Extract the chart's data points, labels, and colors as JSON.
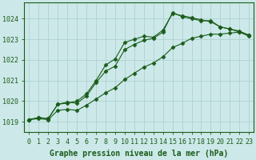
{
  "xlabel": "Graphe pression niveau de la mer (hPa)",
  "bg_color": "#cce8e8",
  "line_color": "#1a5c1a",
  "grid_color": "#aacece",
  "ylim": [
    1018.5,
    1024.8
  ],
  "xlim": [
    -0.5,
    23.5
  ],
  "yticks": [
    1019,
    1020,
    1021,
    1022,
    1023,
    1024
  ],
  "xticks": [
    0,
    1,
    2,
    3,
    4,
    5,
    6,
    7,
    8,
    9,
    10,
    11,
    12,
    13,
    14,
    15,
    16,
    17,
    18,
    19,
    20,
    21,
    22,
    23
  ],
  "xtick_labels": [
    "0",
    "1",
    "2",
    "3",
    "4",
    "5",
    "6",
    "7",
    "8",
    "9",
    "10",
    "11",
    "12",
    "13",
    "14",
    "15",
    "16",
    "17",
    "18",
    "19",
    "20",
    "21",
    "22",
    "23"
  ],
  "line1_x": [
    0,
    1,
    2,
    3,
    4,
    5,
    6,
    7,
    8,
    9,
    10,
    11,
    12,
    13,
    14,
    15,
    16,
    17,
    18,
    19,
    20,
    21,
    22,
    23
  ],
  "line1_y": [
    1019.1,
    1019.2,
    1019.15,
    1019.85,
    1019.9,
    1020.0,
    1020.35,
    1021.0,
    1021.75,
    1022.05,
    1022.85,
    1023.0,
    1023.15,
    1023.1,
    1023.45,
    1024.25,
    1024.15,
    1024.05,
    1023.95,
    1023.85,
    1023.6,
    1023.5,
    1023.4,
    1023.2
  ],
  "line2_x": [
    0,
    1,
    2,
    3,
    4,
    5,
    6,
    7,
    8,
    9,
    10,
    11,
    12,
    13,
    14,
    15,
    16,
    17,
    18,
    19,
    20,
    21,
    22,
    23
  ],
  "line2_y": [
    1019.1,
    1019.2,
    1019.15,
    1019.85,
    1019.95,
    1019.9,
    1020.25,
    1020.9,
    1021.45,
    1021.7,
    1022.5,
    1022.75,
    1022.95,
    1023.05,
    1023.35,
    1024.3,
    1024.1,
    1024.0,
    1023.9,
    1023.9,
    1023.6,
    1023.5,
    1023.35,
    1023.2
  ],
  "line3_x": [
    0,
    1,
    2,
    3,
    4,
    5,
    6,
    7,
    8,
    9,
    10,
    11,
    12,
    13,
    14,
    15,
    16,
    17,
    18,
    19,
    20,
    21,
    22,
    23
  ],
  "line3_y": [
    1019.1,
    1019.15,
    1019.1,
    1019.55,
    1019.6,
    1019.55,
    1019.8,
    1020.1,
    1020.4,
    1020.65,
    1021.05,
    1021.35,
    1021.65,
    1021.85,
    1022.15,
    1022.6,
    1022.8,
    1023.05,
    1023.15,
    1023.25,
    1023.25,
    1023.3,
    1023.35,
    1023.15
  ],
  "marker": "D",
  "markersize": 2.5,
  "linewidth": 0.8,
  "label_fontsize": 7,
  "tick_fontsize": 6
}
